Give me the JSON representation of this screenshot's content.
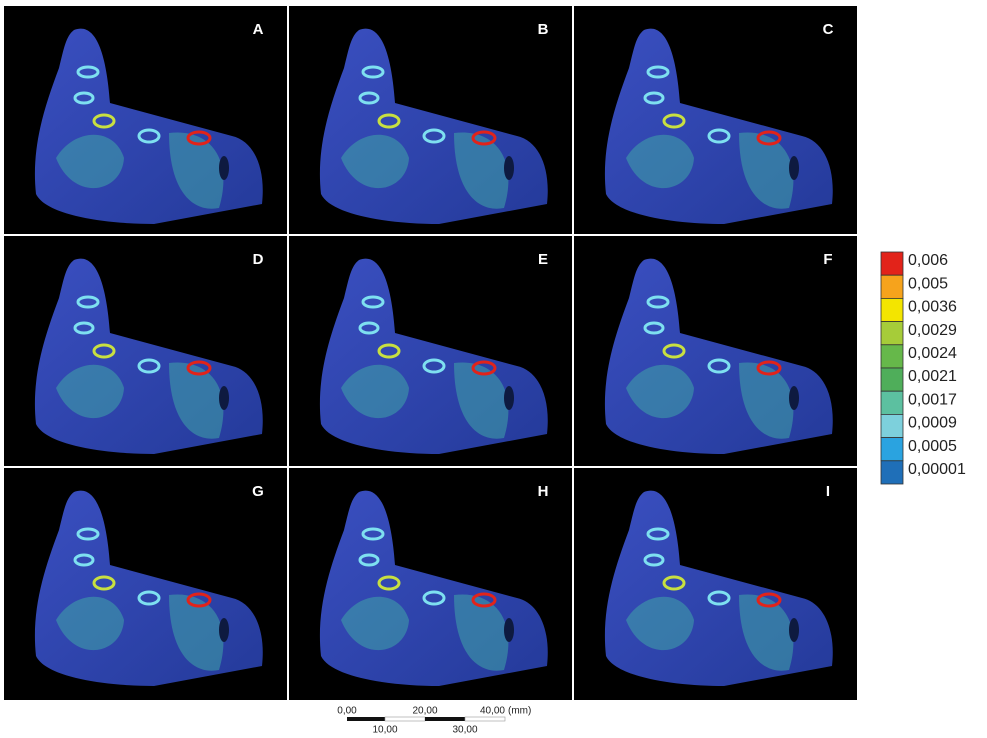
{
  "panels": [
    {
      "label": "A"
    },
    {
      "label": "B"
    },
    {
      "label": "C"
    },
    {
      "label": "D"
    },
    {
      "label": "E"
    },
    {
      "label": "F"
    },
    {
      "label": "G"
    },
    {
      "label": "H"
    },
    {
      "label": "I"
    }
  ],
  "legend": {
    "items": [
      {
        "label": "0,006",
        "color": "#e2231a"
      },
      {
        "label": "0,005",
        "color": "#f6a31c"
      },
      {
        "label": "0,0036",
        "color": "#f3e500"
      },
      {
        "label": "0,0029",
        "color": "#a6cc39"
      },
      {
        "label": "0,0024",
        "color": "#66b84a"
      },
      {
        "label": "0,0021",
        "color": "#4fae5a"
      },
      {
        "label": "0,0017",
        "color": "#5cc0a0"
      },
      {
        "label": "0,0009",
        "color": "#7dd0dc"
      },
      {
        "label": "0,0005",
        "color": "#2aa3e0"
      },
      {
        "label": "0,00001",
        "color": "#1f6fb8"
      }
    ]
  },
  "scale_bar": {
    "top_labels": [
      "0,00",
      "20,00",
      "40,00"
    ],
    "bottom_labels": [
      "10,00",
      "30,00"
    ],
    "unit": "(mm)"
  }
}
